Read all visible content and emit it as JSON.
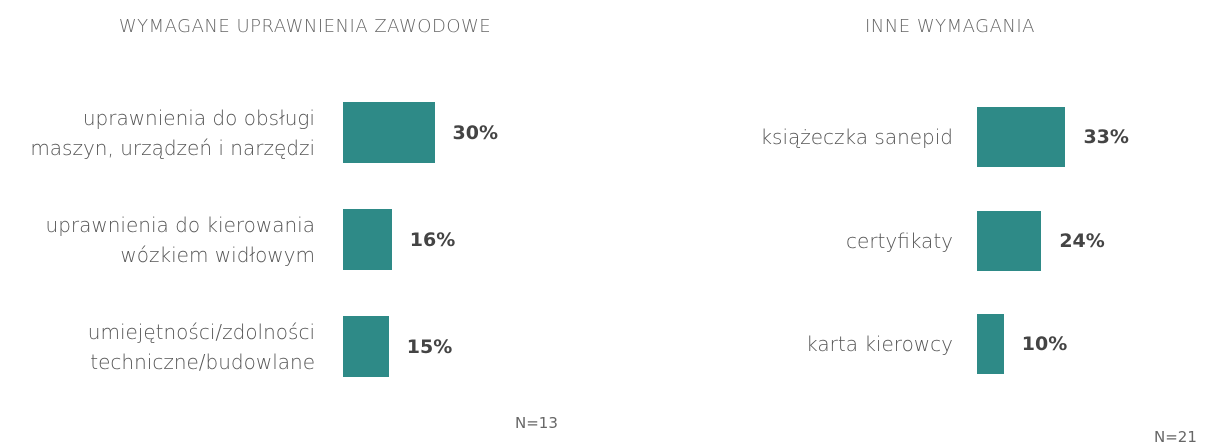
{
  "chart_data": [
    {
      "type": "bar",
      "orientation": "horizontal",
      "title": "WYMAGANE UPRAWNIENIA ZAWODOWE",
      "categories": [
        "uprawnienia do obsługi maszyn, urządzeń i narzędzi",
        "uprawnienia do kierowania wózkiem widłowym",
        "umiejętności/zdolności techniczne/budowlane"
      ],
      "values": [
        30,
        16,
        15
      ],
      "value_labels": [
        "30%",
        "16%",
        "15%"
      ],
      "color": "#2e8a87",
      "annotation": "N=13"
    },
    {
      "type": "bar",
      "orientation": "horizontal",
      "title": "INNE WYMAGANIA",
      "categories": [
        "książeczka sanepid",
        "certyfikaty",
        "karta kierowcy"
      ],
      "values": [
        33,
        24,
        10
      ],
      "value_labels": [
        "33%",
        "24%",
        "10%"
      ],
      "color": "#2e8a87",
      "annotation": "N=21"
    }
  ]
}
